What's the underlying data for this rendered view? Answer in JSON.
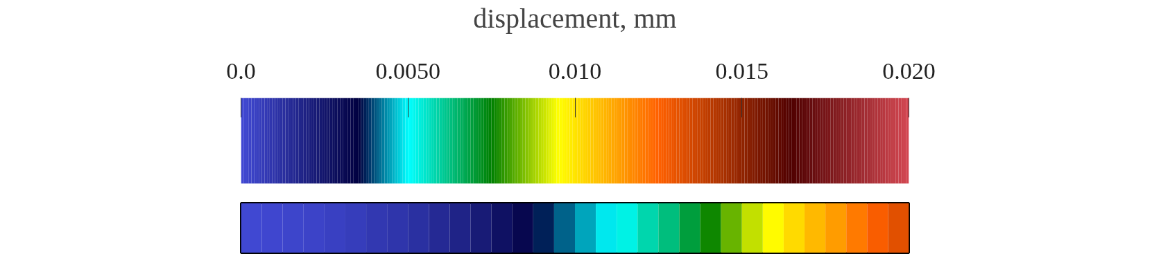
{
  "chart_data": {
    "type": "heatmap",
    "clabel": "displacement, mm",
    "categories": [
      null,
      null,
      null,
      null,
      null,
      null,
      null,
      null,
      null,
      null,
      null,
      null,
      null,
      null,
      null,
      null,
      null,
      null,
      null,
      null,
      null,
      null,
      null,
      null,
      null,
      null,
      null,
      null,
      null,
      null,
      null,
      null
    ],
    "y_categories": [
      null
    ],
    "cells": [
      [
        0.0,
        0.0001,
        0.0002,
        0.0003,
        0.0004,
        0.0006,
        0.0008,
        0.001,
        0.0012,
        0.0015,
        0.0018,
        0.0022,
        0.0027,
        0.0032,
        0.0037,
        0.0041,
        0.0045,
        0.0049,
        0.0053,
        0.0058,
        0.0063,
        0.0069,
        0.0076,
        0.0083,
        0.009,
        0.0096,
        0.0102,
        0.0108,
        0.0114,
        0.012,
        0.0126,
        0.0132
      ]
    ],
    "clim": [
      0.0,
      0.02
    ],
    "cticks": [
      {
        "value": 0.0,
        "label": "0.0"
      },
      {
        "value": 0.005,
        "label": "0.0050"
      },
      {
        "value": 0.01,
        "label": "0.010"
      },
      {
        "value": 0.015,
        "label": "0.015"
      },
      {
        "value": 0.02,
        "label": "0.020"
      }
    ]
  }
}
